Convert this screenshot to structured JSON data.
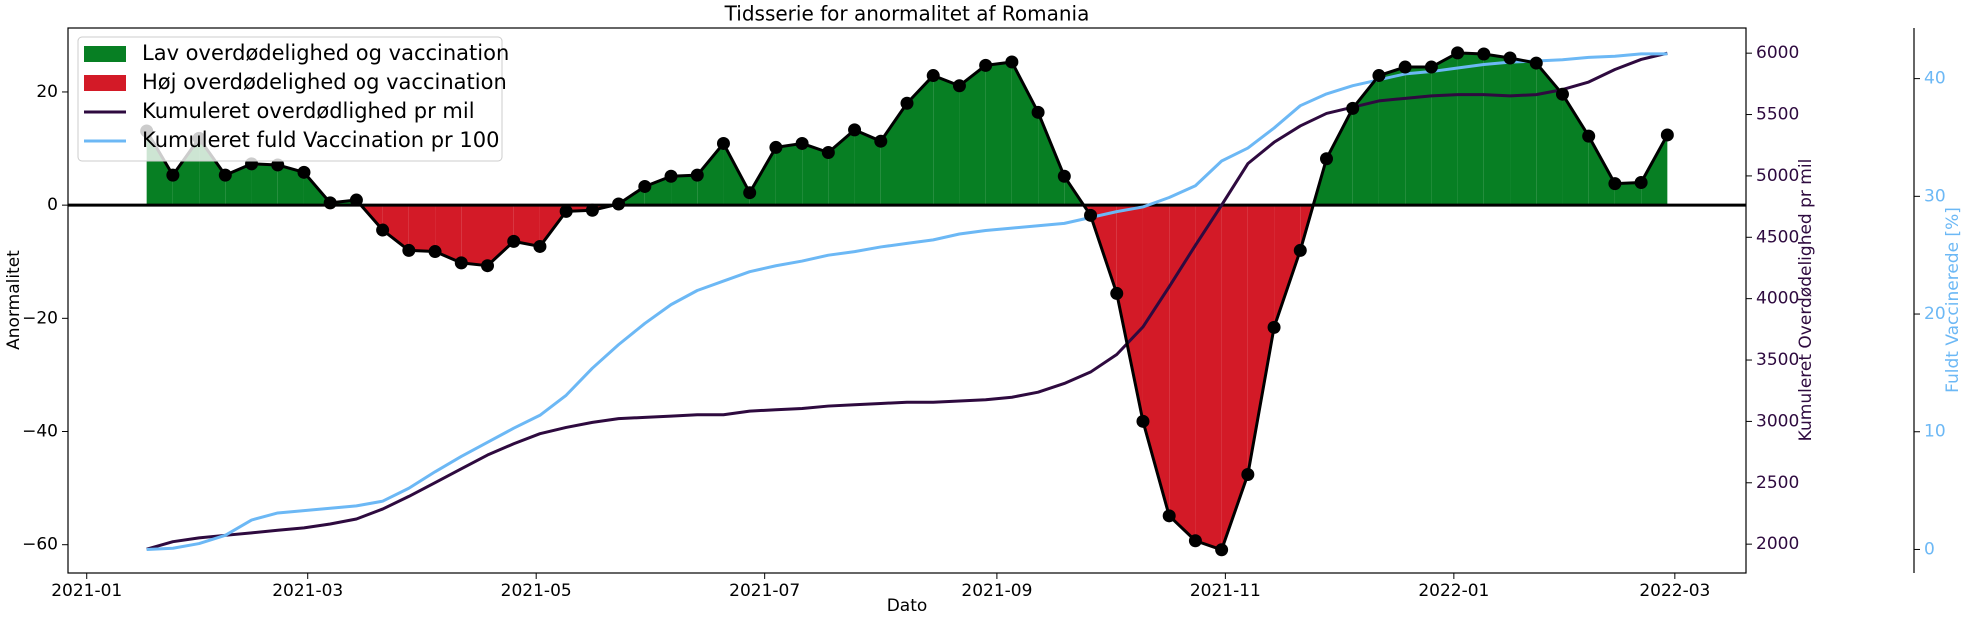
{
  "chart_data": {
    "type": "line",
    "title": "Tidsserie for anormalitet af Romania",
    "xlabel": "Dato",
    "ylabel": "Anormalitet",
    "y2label": "Kumuleret Overdødelighed pr mil",
    "y3label": "Fuldt Vaccinerede [%]",
    "x": [
      "2021-01-17",
      "2021-01-24",
      "2021-01-31",
      "2021-02-07",
      "2021-02-14",
      "2021-02-21",
      "2021-02-28",
      "2021-03-07",
      "2021-03-14",
      "2021-03-21",
      "2021-03-28",
      "2021-04-04",
      "2021-04-11",
      "2021-04-18",
      "2021-04-25",
      "2021-05-02",
      "2021-05-09",
      "2021-05-16",
      "2021-05-23",
      "2021-05-30",
      "2021-06-06",
      "2021-06-13",
      "2021-06-20",
      "2021-06-27",
      "2021-07-04",
      "2021-07-11",
      "2021-07-18",
      "2021-07-25",
      "2021-08-01",
      "2021-08-08",
      "2021-08-15",
      "2021-08-22",
      "2021-08-29",
      "2021-09-05",
      "2021-09-12",
      "2021-09-19",
      "2021-09-26",
      "2021-10-03",
      "2021-10-10",
      "2021-10-17",
      "2021-10-24",
      "2021-10-31",
      "2021-11-07",
      "2021-11-14",
      "2021-11-21",
      "2021-11-28",
      "2021-12-05",
      "2021-12-12",
      "2021-12-19",
      "2021-12-26",
      "2022-01-02",
      "2022-01-09",
      "2022-01-16",
      "2022-01-23",
      "2022-01-30",
      "2022-02-06",
      "2022-02-13",
      "2022-02-20",
      "2022-02-27"
    ],
    "anomaly": {
      "color": "#000000",
      "values": [
        13.1,
        5.3,
        11.8,
        5.3,
        7.3,
        7.1,
        5.8,
        0.4,
        0.9,
        -4.4,
        -8.0,
        -8.2,
        -10.2,
        -10.7,
        -6.4,
        -7.3,
        -1.1,
        -0.9,
        0.2,
        3.3,
        5.1,
        5.3,
        10.9,
        2.2,
        10.2,
        10.9,
        9.3,
        13.3,
        11.3,
        18.0,
        22.9,
        21.1,
        24.7,
        25.3,
        16.4,
        5.1,
        -1.8,
        -15.6,
        -38.2,
        -54.9,
        -59.3,
        -60.9,
        -47.6,
        -21.6,
        -8.0,
        8.2,
        17.1,
        22.9,
        24.4,
        24.4,
        26.9,
        26.7,
        26.0,
        25.1,
        19.6,
        12.2,
        3.8,
        4.0,
        12.4
      ]
    },
    "fills": [
      {
        "name": "Lav overdødelighed og vaccination",
        "color": "#077f23"
      },
      {
        "name": "Høj overdødelighed og vaccination",
        "color": "#d31a27"
      }
    ],
    "series": [
      {
        "name": "Kumuleret overdødlighed pr mil",
        "color": "#2e0a3f",
        "axis": "y2",
        "values": [
          1959,
          2020,
          2051,
          2072,
          2092,
          2113,
          2133,
          2164,
          2205,
          2286,
          2389,
          2501,
          2614,
          2726,
          2818,
          2900,
          2951,
          2992,
          3023,
          3033,
          3043,
          3054,
          3054,
          3084,
          3095,
          3105,
          3125,
          3136,
          3146,
          3156,
          3156,
          3166,
          3176,
          3197,
          3238,
          3309,
          3402,
          3545,
          3770,
          4097,
          4435,
          4762,
          5100,
          5274,
          5407,
          5509,
          5560,
          5611,
          5632,
          5652,
          5662,
          5662,
          5652,
          5662,
          5703,
          5765,
          5867,
          5949,
          6000
        ]
      },
      {
        "name": "Kumuleret fuld Vaccination pr 100",
        "color": "#6cb8f5",
        "axis": "y3",
        "values": [
          0,
          0.1,
          0.5,
          1.2,
          2.5,
          3.1,
          3.3,
          3.5,
          3.7,
          4.1,
          5.2,
          6.6,
          7.9,
          9.1,
          10.3,
          11.4,
          13.1,
          15.4,
          17.4,
          19.2,
          20.8,
          22.0,
          22.8,
          23.6,
          24.1,
          24.5,
          25.0,
          25.3,
          25.7,
          26.0,
          26.3,
          26.8,
          27.1,
          27.3,
          27.5,
          27.7,
          28.2,
          28.7,
          29.1,
          29.9,
          30.9,
          33.0,
          34.1,
          35.8,
          37.7,
          38.7,
          39.4,
          39.9,
          40.4,
          40.6,
          40.9,
          41.2,
          41.4,
          41.5,
          41.6,
          41.8,
          41.9,
          42.1,
          42.1
        ]
      }
    ],
    "zero_line": 0,
    "xlim": [
      "2020-12-27",
      "2022-03-20"
    ],
    "xticks": [
      "2021-01",
      "2021-03",
      "2021-05",
      "2021-07",
      "2021-09",
      "2021-11",
      "2022-01",
      "2022-03"
    ],
    "ylim": [
      -65,
      31.3
    ],
    "yticks": [
      {
        "value": -60,
        "label": "−60"
      },
      {
        "value": -40,
        "label": "−40"
      },
      {
        "value": -20,
        "label": "−20"
      },
      0,
      20
    ],
    "y2lim": [
      1765,
      6205
    ],
    "y2ticks": [
      2000,
      2500,
      3000,
      3500,
      4000,
      4500,
      5000,
      5500,
      6000
    ],
    "y3lim": [
      -2,
      44.3
    ],
    "y3ticks": [
      0,
      10,
      20,
      30,
      40
    ],
    "legend": "upper left"
  }
}
